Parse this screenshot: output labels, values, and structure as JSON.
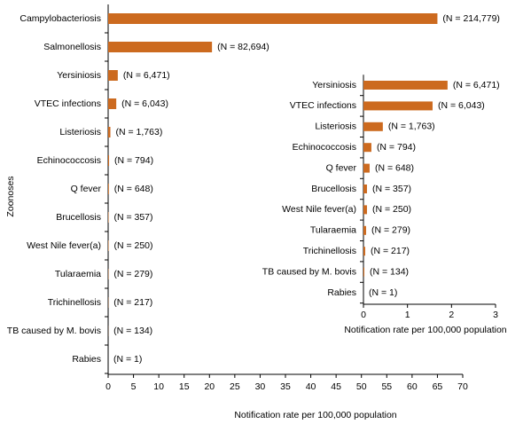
{
  "chart_data": [
    {
      "type": "bar",
      "orientation": "horizontal",
      "x_label": "Notification rate per 100,000 population",
      "y_label": "Zoonoses",
      "color": "#cc6a1f",
      "categories": [
        "Campylobacteriosis",
        "Salmonellosis",
        "Yersiniosis",
        "VTEC infections",
        "Listeriosis",
        "Echinococcosis",
        "Q fever",
        "Brucellosis",
        "West Nile fever(a)",
        "Tularaemia",
        "Trichinellosis",
        "TB caused by M. bovis",
        "Rabies"
      ],
      "values": [
        65,
        20.5,
        1.9,
        1.6,
        0.44,
        0.18,
        0.14,
        0.08,
        0.08,
        0.06,
        0.04,
        0.02,
        0
      ],
      "annotations": [
        "(N = 214,779)",
        "(N = 82,694)",
        "(N = 6,471)",
        "(N = 6,043)",
        "(N = 1,763)",
        "(N = 794)",
        "(N = 648)",
        "(N = 357)",
        "(N = 250)",
        "(N = 279)",
        "(N = 217)",
        "(N = 134)",
        "(N = 1)"
      ],
      "xlim": [
        0,
        70
      ],
      "xticks": [
        0,
        5,
        10,
        15,
        20,
        25,
        30,
        35,
        40,
        45,
        50,
        55,
        60,
        65,
        70
      ]
    },
    {
      "type": "bar",
      "orientation": "horizontal",
      "x_label": "Notification rate per 100,000 population",
      "color": "#cc6a1f",
      "categories": [
        "Yersiniosis",
        "VTEC infections",
        "Listeriosis",
        "Echinococcosis",
        "Q fever",
        "Brucellosis",
        "West Nile fever(a)",
        "Tularaemia",
        "Trichinellosis",
        "TB caused by M. bovis",
        "Rabies"
      ],
      "values": [
        1.91,
        1.57,
        0.44,
        0.18,
        0.14,
        0.08,
        0.08,
        0.06,
        0.04,
        0.02,
        0
      ],
      "annotations": [
        "(N = 6,471)",
        "(N = 6,043)",
        "(N = 1,763)",
        "(N = 794)",
        "(N = 648)",
        "(N = 357)",
        "(N = 250)",
        "(N = 279)",
        "(N = 217)",
        "(N = 134)",
        "(N = 1)"
      ],
      "xlim": [
        0,
        3
      ],
      "xticks": [
        0,
        1,
        2,
        3
      ]
    }
  ]
}
